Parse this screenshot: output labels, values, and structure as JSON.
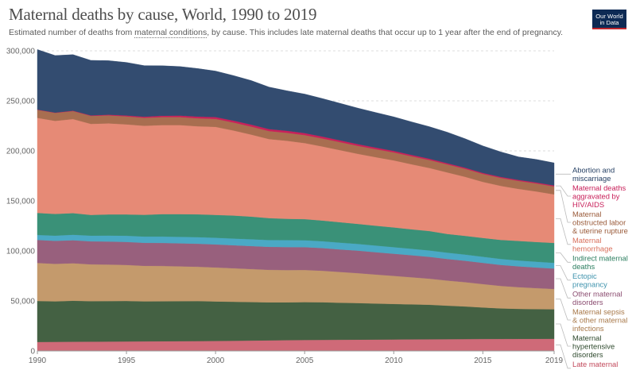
{
  "title": "Maternal deaths by cause, World, 1990 to 2019",
  "subtitle_before": "Estimated number of deaths from ",
  "subtitle_link": "maternal conditions",
  "subtitle_after": ", by cause. This includes late maternal deaths that occur up to 1 year after the end of pregnancy.",
  "logo": {
    "line1": "Our World",
    "line2": "in Data"
  },
  "colors": {
    "title": "#4e4e4e",
    "logo_bg": "#0d2a54",
    "logo_accent": "#c0282f",
    "grid": "#dddddd"
  },
  "chart_data": {
    "type": "area",
    "stacked": true,
    "title": "Maternal deaths by cause, World, 1990 to 2019",
    "x": [
      1990,
      1991,
      1992,
      1993,
      1994,
      1995,
      1996,
      1997,
      1998,
      1999,
      2000,
      2001,
      2002,
      2003,
      2004,
      2005,
      2006,
      2007,
      2008,
      2009,
      2010,
      2011,
      2012,
      2013,
      2014,
      2015,
      2016,
      2017,
      2018,
      2019
    ],
    "xticks": [
      1990,
      1995,
      2000,
      2005,
      2010,
      2015,
      2019
    ],
    "yticks": [
      0,
      50000,
      100000,
      150000,
      200000,
      250000,
      300000
    ],
    "ytick_labels": [
      "0",
      "50,000",
      "100,000",
      "150,000",
      "200,000",
      "250,000",
      "300,000"
    ],
    "ylim": [
      0,
      300000
    ],
    "grid": true,
    "legend_position": "right",
    "series": [
      {
        "name": "Late maternal deaths",
        "label_lines": [
          "Late maternal",
          "deaths"
        ],
        "color": "#cf6a78",
        "label_color": "#c24a5c",
        "values": [
          9000,
          9100,
          9200,
          9300,
          9400,
          9500,
          9600,
          9700,
          9800,
          9900,
          10000,
          10200,
          10400,
          10600,
          10800,
          11000,
          11100,
          11200,
          11300,
          11400,
          11500,
          11600,
          11700,
          11800,
          11900,
          12000,
          12050,
          12100,
          12150,
          12200
        ]
      },
      {
        "name": "Maternal hypertensive disorders",
        "label_lines": [
          "Maternal",
          "hypertensive",
          "disorders"
        ],
        "color": "#446143",
        "label_color": "#2f4a2e",
        "values": [
          41000,
          40500,
          41000,
          40500,
          40500,
          40500,
          40000,
          40000,
          40000,
          40000,
          39500,
          39000,
          38500,
          38000,
          37800,
          37800,
          37600,
          37000,
          36600,
          36000,
          35500,
          35000,
          34500,
          33500,
          32600,
          31500,
          30500,
          30000,
          29700,
          29500
        ]
      },
      {
        "name": "Maternal sepsis & other maternal infections",
        "label_lines": [
          "Maternal sepsis",
          "& other maternal",
          "infections"
        ],
        "color": "#c49a6c",
        "label_color": "#a8794a",
        "values": [
          38000,
          37500,
          37500,
          36800,
          36500,
          36000,
          35500,
          35300,
          34800,
          34300,
          34000,
          33500,
          33000,
          32500,
          32300,
          32200,
          31500,
          30800,
          29900,
          29000,
          28100,
          27100,
          26100,
          25100,
          24300,
          23400,
          22500,
          21700,
          21000,
          20300
        ]
      },
      {
        "name": "Other maternal disorders",
        "label_lines": [
          "Other maternal",
          "disorders"
        ],
        "color": "#98607d",
        "label_color": "#8a4b6f",
        "values": [
          23000,
          23000,
          23000,
          23000,
          23000,
          23000,
          23000,
          23000,
          23000,
          23000,
          23000,
          23000,
          23000,
          23000,
          23000,
          22800,
          22700,
          22500,
          22500,
          22300,
          22100,
          22000,
          21800,
          21600,
          21400,
          21200,
          21000,
          20800,
          20600,
          20400
        ]
      },
      {
        "name": "Ectopic pregnancy",
        "label_lines": [
          "Ectopic",
          "pregnancy"
        ],
        "color": "#4aa9c5",
        "label_color": "#3f93ad",
        "values": [
          5000,
          5200,
          5500,
          5700,
          6000,
          6200,
          6300,
          6400,
          6500,
          6600,
          6700,
          6700,
          6800,
          6800,
          6900,
          6900,
          6800,
          6800,
          6700,
          6700,
          6600,
          6500,
          6400,
          6300,
          6200,
          6100,
          6000,
          5900,
          5800,
          5700
        ]
      },
      {
        "name": "Indirect maternal deaths",
        "label_lines": [
          "Indirect maternal",
          "deaths"
        ],
        "color": "#3a9178",
        "label_color": "#2a7d5e",
        "values": [
          22000,
          21700,
          21600,
          20700,
          21100,
          21300,
          21700,
          22400,
          22700,
          22800,
          22800,
          23000,
          22600,
          21900,
          21300,
          21100,
          20700,
          20400,
          20000,
          19800,
          19700,
          19400,
          19400,
          18700,
          18700,
          18800,
          19000,
          19500,
          19700,
          19900
        ]
      },
      {
        "name": "Maternal hemorrhage",
        "label_lines": [
          "Maternal",
          "hemorrhage"
        ],
        "color": "#e68a76",
        "label_color": "#d9705c",
        "values": [
          95000,
          93000,
          94000,
          91000,
          91000,
          90000,
          89000,
          89000,
          89000,
          88000,
          88000,
          85000,
          82000,
          79000,
          78000,
          76000,
          74000,
          72000,
          70000,
          68500,
          67000,
          65000,
          63000,
          61500,
          59000,
          56000,
          54000,
          52000,
          50500,
          48500
        ]
      },
      {
        "name": "Maternal obstructed labor & uterine rupture",
        "label_lines": [
          "Maternal",
          "obstructed labor",
          "& uterine rupture"
        ],
        "color": "#a86e50",
        "label_color": "#9a5b3a",
        "values": [
          8000,
          8000,
          8000,
          8000,
          8000,
          8000,
          8000,
          8000,
          8000,
          8000,
          8000,
          8000,
          8000,
          8000,
          8000,
          8000,
          8000,
          8000,
          8000,
          8000,
          8000,
          8000,
          8000,
          8000,
          8000,
          8000,
          8000,
          8000,
          8000,
          8000
        ]
      },
      {
        "name": "Maternal deaths aggravated by HIV/AIDS",
        "label_lines": [
          "Maternal deaths",
          "aggravated by",
          "HIV/AIDS"
        ],
        "color": "#c8205a",
        "label_color": "#c8205a",
        "values": [
          300,
          300,
          400,
          500,
          700,
          900,
          1100,
          1300,
          1500,
          1700,
          1800,
          1900,
          2000,
          2000,
          2000,
          2000,
          1900,
          1800,
          1700,
          1600,
          1500,
          1400,
          1300,
          1200,
          1100,
          1000,
          1000,
          1000,
          1000,
          1000
        ]
      },
      {
        "name": "Abortion and miscarriage",
        "label_lines": [
          "Abortion and",
          "miscarriage"
        ],
        "color": "#334c70",
        "label_color": "#1f3a5f",
        "values": [
          60000,
          57000,
          56000,
          55000,
          54000,
          53000,
          51000,
          50000,
          49000,
          48000,
          46000,
          45000,
          44000,
          42000,
          40000,
          39000,
          38000,
          37000,
          36000,
          35000,
          34000,
          33000,
          32000,
          31000,
          29000,
          27000,
          25000,
          23000,
          23000,
          22500
        ]
      }
    ]
  }
}
